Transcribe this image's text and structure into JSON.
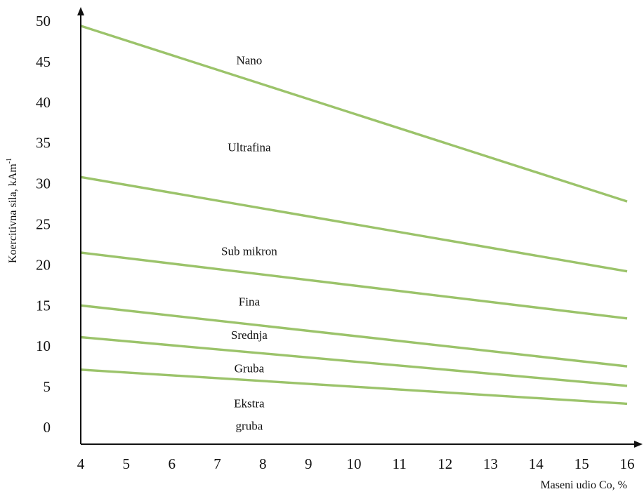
{
  "chart_data": {
    "type": "line",
    "title": "",
    "xlabel": "Maseni udio Co, %",
    "ylabel_main": "Koercitivna sila, kAm",
    "ylabel_sup": "-1",
    "xlim": [
      4,
      16
    ],
    "ylim": [
      0,
      50
    ],
    "x_ticks": [
      "4",
      "5",
      "6",
      "7",
      "8",
      "9",
      "10",
      "11",
      "12",
      "13",
      "14",
      "15",
      "16"
    ],
    "y_ticks": [
      "0",
      "5",
      "10",
      "15",
      "20",
      "25",
      "30",
      "35",
      "40",
      "45",
      "50"
    ],
    "line_color": "#9bc36a",
    "grid": false,
    "legend": "none",
    "series": [
      {
        "x": [
          4,
          16
        ],
        "y": [
          49.4,
          27.8
        ]
      },
      {
        "x": [
          4,
          16
        ],
        "y": [
          30.8,
          19.2
        ]
      },
      {
        "x": [
          4,
          16
        ],
        "y": [
          21.5,
          13.4
        ]
      },
      {
        "x": [
          4,
          16
        ],
        "y": [
          15.0,
          7.5
        ]
      },
      {
        "x": [
          4,
          16
        ],
        "y": [
          11.1,
          5.1
        ]
      },
      {
        "x": [
          4,
          16
        ],
        "y": [
          7.1,
          2.9
        ]
      }
    ],
    "region_labels": [
      {
        "text": "Nano",
        "x": 7.7,
        "y": 45.2
      },
      {
        "text": "Ultrafina",
        "x": 7.7,
        "y": 34.5
      },
      {
        "text": "Sub mikron",
        "x": 7.7,
        "y": 21.7
      },
      {
        "text": "Fina",
        "x": 7.7,
        "y": 15.5
      },
      {
        "text": "Srednja",
        "x": 7.7,
        "y": 11.4
      },
      {
        "text": "Gruba",
        "x": 7.7,
        "y": 7.3
      },
      {
        "text": "Ekstra",
        "x": 7.7,
        "y": 3.0
      },
      {
        "text": "gruba",
        "x": 7.7,
        "y": 0.2
      }
    ]
  }
}
